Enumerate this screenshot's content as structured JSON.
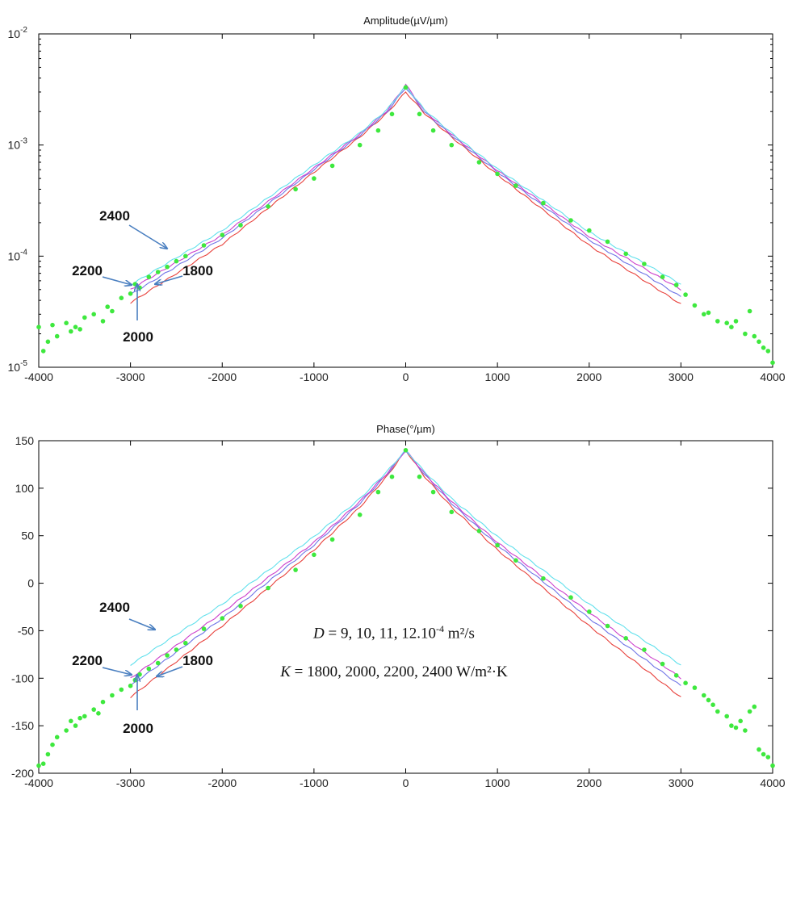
{
  "colors": {
    "k1800": "#e8413c",
    "k2000": "#6f74e6",
    "k2200": "#cc3fcc",
    "k2400": "#5fe0ec",
    "measured": "#3ee83e",
    "arrow": "#4a7fc0"
  },
  "chart_data": [
    {
      "type": "line",
      "title": "Amplitude(µV/µm)",
      "xlabel": "",
      "ylabel": "",
      "xlim": [
        -4000,
        4000
      ],
      "ylim": [
        1e-05,
        0.01
      ],
      "yscale": "log",
      "xticks": [
        "-4000",
        "-3000",
        "-2000",
        "-1000",
        "0",
        "1000",
        "2000",
        "3000",
        "4000"
      ],
      "yticks": [
        {
          "base": "10",
          "exp": "-2"
        },
        {
          "base": "10",
          "exp": "-3"
        },
        {
          "base": "10",
          "exp": "-4"
        },
        {
          "base": "10",
          "exp": "-5"
        }
      ],
      "grid": false,
      "annotations": [
        "2400",
        "2200",
        "1800",
        "2000"
      ],
      "model_x": [
        -3000,
        -2000,
        -1000,
        -500,
        -200,
        0,
        200,
        500,
        1000,
        2000,
        3000
      ],
      "series": [
        {
          "key": "k1800",
          "values": [
            3.8e-05,
            0.000128,
            0.00057,
            0.00118,
            0.00195,
            0.003,
            0.00195,
            0.00118,
            0.00054,
            0.000125,
            3.7e-05
          ]
        },
        {
          "key": "k2000",
          "values": [
            4.5e-05,
            0.000145,
            0.0006,
            0.00122,
            0.002,
            0.0033,
            0.002,
            0.00122,
            0.00057,
            0.00014,
            4.3e-05
          ]
        },
        {
          "key": "k2200",
          "values": [
            5e-05,
            0.000155,
            0.00062,
            0.00125,
            0.00205,
            0.0035,
            0.00205,
            0.00125,
            0.00059,
            0.00015,
            5e-05
          ]
        },
        {
          "key": "k2400",
          "values": [
            5.5e-05,
            0.00017,
            0.00066,
            0.00128,
            0.0021,
            0.0034,
            0.0021,
            0.00128,
            0.00061,
            0.000165,
            5.6e-05
          ]
        }
      ],
      "measured": {
        "x": [
          -4000,
          -3950,
          -3900,
          -3850,
          -3800,
          -3700,
          -3650,
          -3600,
          -3550,
          -3500,
          -3400,
          -3300,
          -3250,
          -3200,
          -3100,
          -3000,
          -2950,
          -2900,
          -2800,
          -2700,
          -2600,
          -2500,
          -2400,
          -2200,
          -2000,
          -1800,
          -1500,
          -1200,
          -1000,
          -800,
          -500,
          -300,
          -150,
          0,
          150,
          300,
          500,
          800,
          1000,
          1200,
          1500,
          1800,
          2000,
          2200,
          2400,
          2600,
          2800,
          2950,
          3050,
          3150,
          3250,
          3300,
          3400,
          3500,
          3550,
          3600,
          3700,
          3750,
          3800,
          3850,
          3900,
          3950,
          4000
        ],
        "y": [
          2.3e-05,
          1.4e-05,
          1.7e-05,
          2.4e-05,
          1.9e-05,
          2.5e-05,
          2.1e-05,
          2.3e-05,
          2.2e-05,
          2.8e-05,
          3e-05,
          2.6e-05,
          3.5e-05,
          3.2e-05,
          4.2e-05,
          4.6e-05,
          5.6e-05,
          5.2e-05,
          6.5e-05,
          7.2e-05,
          8e-05,
          9e-05,
          0.0001,
          0.000125,
          0.000155,
          0.00019,
          0.00028,
          0.0004,
          0.0005,
          0.00065,
          0.001,
          0.00135,
          0.0019,
          0.0033,
          0.0019,
          0.00135,
          0.001,
          0.0007,
          0.00055,
          0.00043,
          0.0003,
          0.00021,
          0.00017,
          0.000135,
          0.000105,
          8.5e-05,
          6.5e-05,
          5.5e-05,
          4.5e-05,
          3.6e-05,
          3e-05,
          3.1e-05,
          2.6e-05,
          2.5e-05,
          2.3e-05,
          2.6e-05,
          2e-05,
          3.2e-05,
          1.9e-05,
          1.7e-05,
          1.5e-05,
          1.4e-05,
          1.1e-05
        ]
      }
    },
    {
      "type": "line",
      "title": "Phase(°/µm)",
      "xlabel": "",
      "ylabel": "",
      "xlim": [
        -4000,
        4000
      ],
      "ylim": [
        -200,
        150
      ],
      "xticks": [
        "-4000",
        "-3000",
        "-2000",
        "-1000",
        "0",
        "1000",
        "2000",
        "3000",
        "4000"
      ],
      "yticks": [
        "150",
        "100",
        "50",
        "0",
        "-50",
        "-100",
        "-150",
        "-200"
      ],
      "grid": false,
      "annotations": [
        "2400",
        "2200",
        "1800",
        "2000"
      ],
      "model_x": [
        -3000,
        -2000,
        -1000,
        -500,
        -200,
        0,
        200,
        500,
        1000,
        2000,
        3000
      ],
      "series": [
        {
          "key": "k1800",
          "values": [
            -120,
            -45,
            35,
            80,
            113,
            140,
            113,
            80,
            35,
            -45,
            -120
          ]
        },
        {
          "key": "k2000",
          "values": [
            -108,
            -37,
            40,
            84,
            115,
            140,
            115,
            84,
            40,
            -37,
            -108
          ]
        },
        {
          "key": "k2200",
          "values": [
            -100,
            -31,
            43,
            86,
            116,
            140,
            116,
            86,
            43,
            -31,
            -100
          ]
        },
        {
          "key": "k2400",
          "values": [
            -86,
            -22,
            49,
            89,
            118,
            140,
            118,
            89,
            49,
            -22,
            -86
          ]
        }
      ],
      "measured": {
        "x": [
          -4000,
          -3950,
          -3900,
          -3850,
          -3800,
          -3700,
          -3650,
          -3600,
          -3550,
          -3500,
          -3400,
          -3350,
          -3300,
          -3200,
          -3100,
          -3000,
          -2950,
          -2900,
          -2800,
          -2700,
          -2600,
          -2500,
          -2400,
          -2200,
          -2000,
          -1800,
          -1500,
          -1200,
          -1000,
          -800,
          -500,
          -300,
          -150,
          0,
          150,
          300,
          500,
          800,
          1000,
          1200,
          1500,
          1800,
          2000,
          2200,
          2400,
          2600,
          2800,
          2950,
          3050,
          3150,
          3250,
          3300,
          3350,
          3400,
          3500,
          3550,
          3600,
          3650,
          3700,
          3750,
          3800,
          3850,
          3900,
          3950,
          4000
        ],
        "y": [
          -192,
          -190,
          -180,
          -170,
          -162,
          -155,
          -145,
          -150,
          -142,
          -140,
          -133,
          -137,
          -125,
          -118,
          -112,
          -108,
          -102,
          -96,
          -90,
          -84,
          -76,
          -70,
          -63,
          -48,
          -37,
          -24,
          -5,
          14,
          30,
          46,
          72,
          96,
          112,
          140,
          112,
          96,
          75,
          55,
          40,
          24,
          5,
          -15,
          -30,
          -45,
          -58,
          -70,
          -85,
          -97,
          -105,
          -110,
          -118,
          -123,
          -128,
          -135,
          -140,
          -150,
          -152,
          -145,
          -155,
          -135,
          -130,
          -175,
          -180,
          -183,
          -192
        ]
      }
    }
  ],
  "caption": {
    "line1_var": "D",
    "line1_text": " = 9, 10, 11, 12.10",
    "line1_exp": "-4",
    "line1_unit": " m²/s",
    "line2_var": "K",
    "line2_text": " = 1800, 2000, 2200, 2400 W/m²·K"
  }
}
